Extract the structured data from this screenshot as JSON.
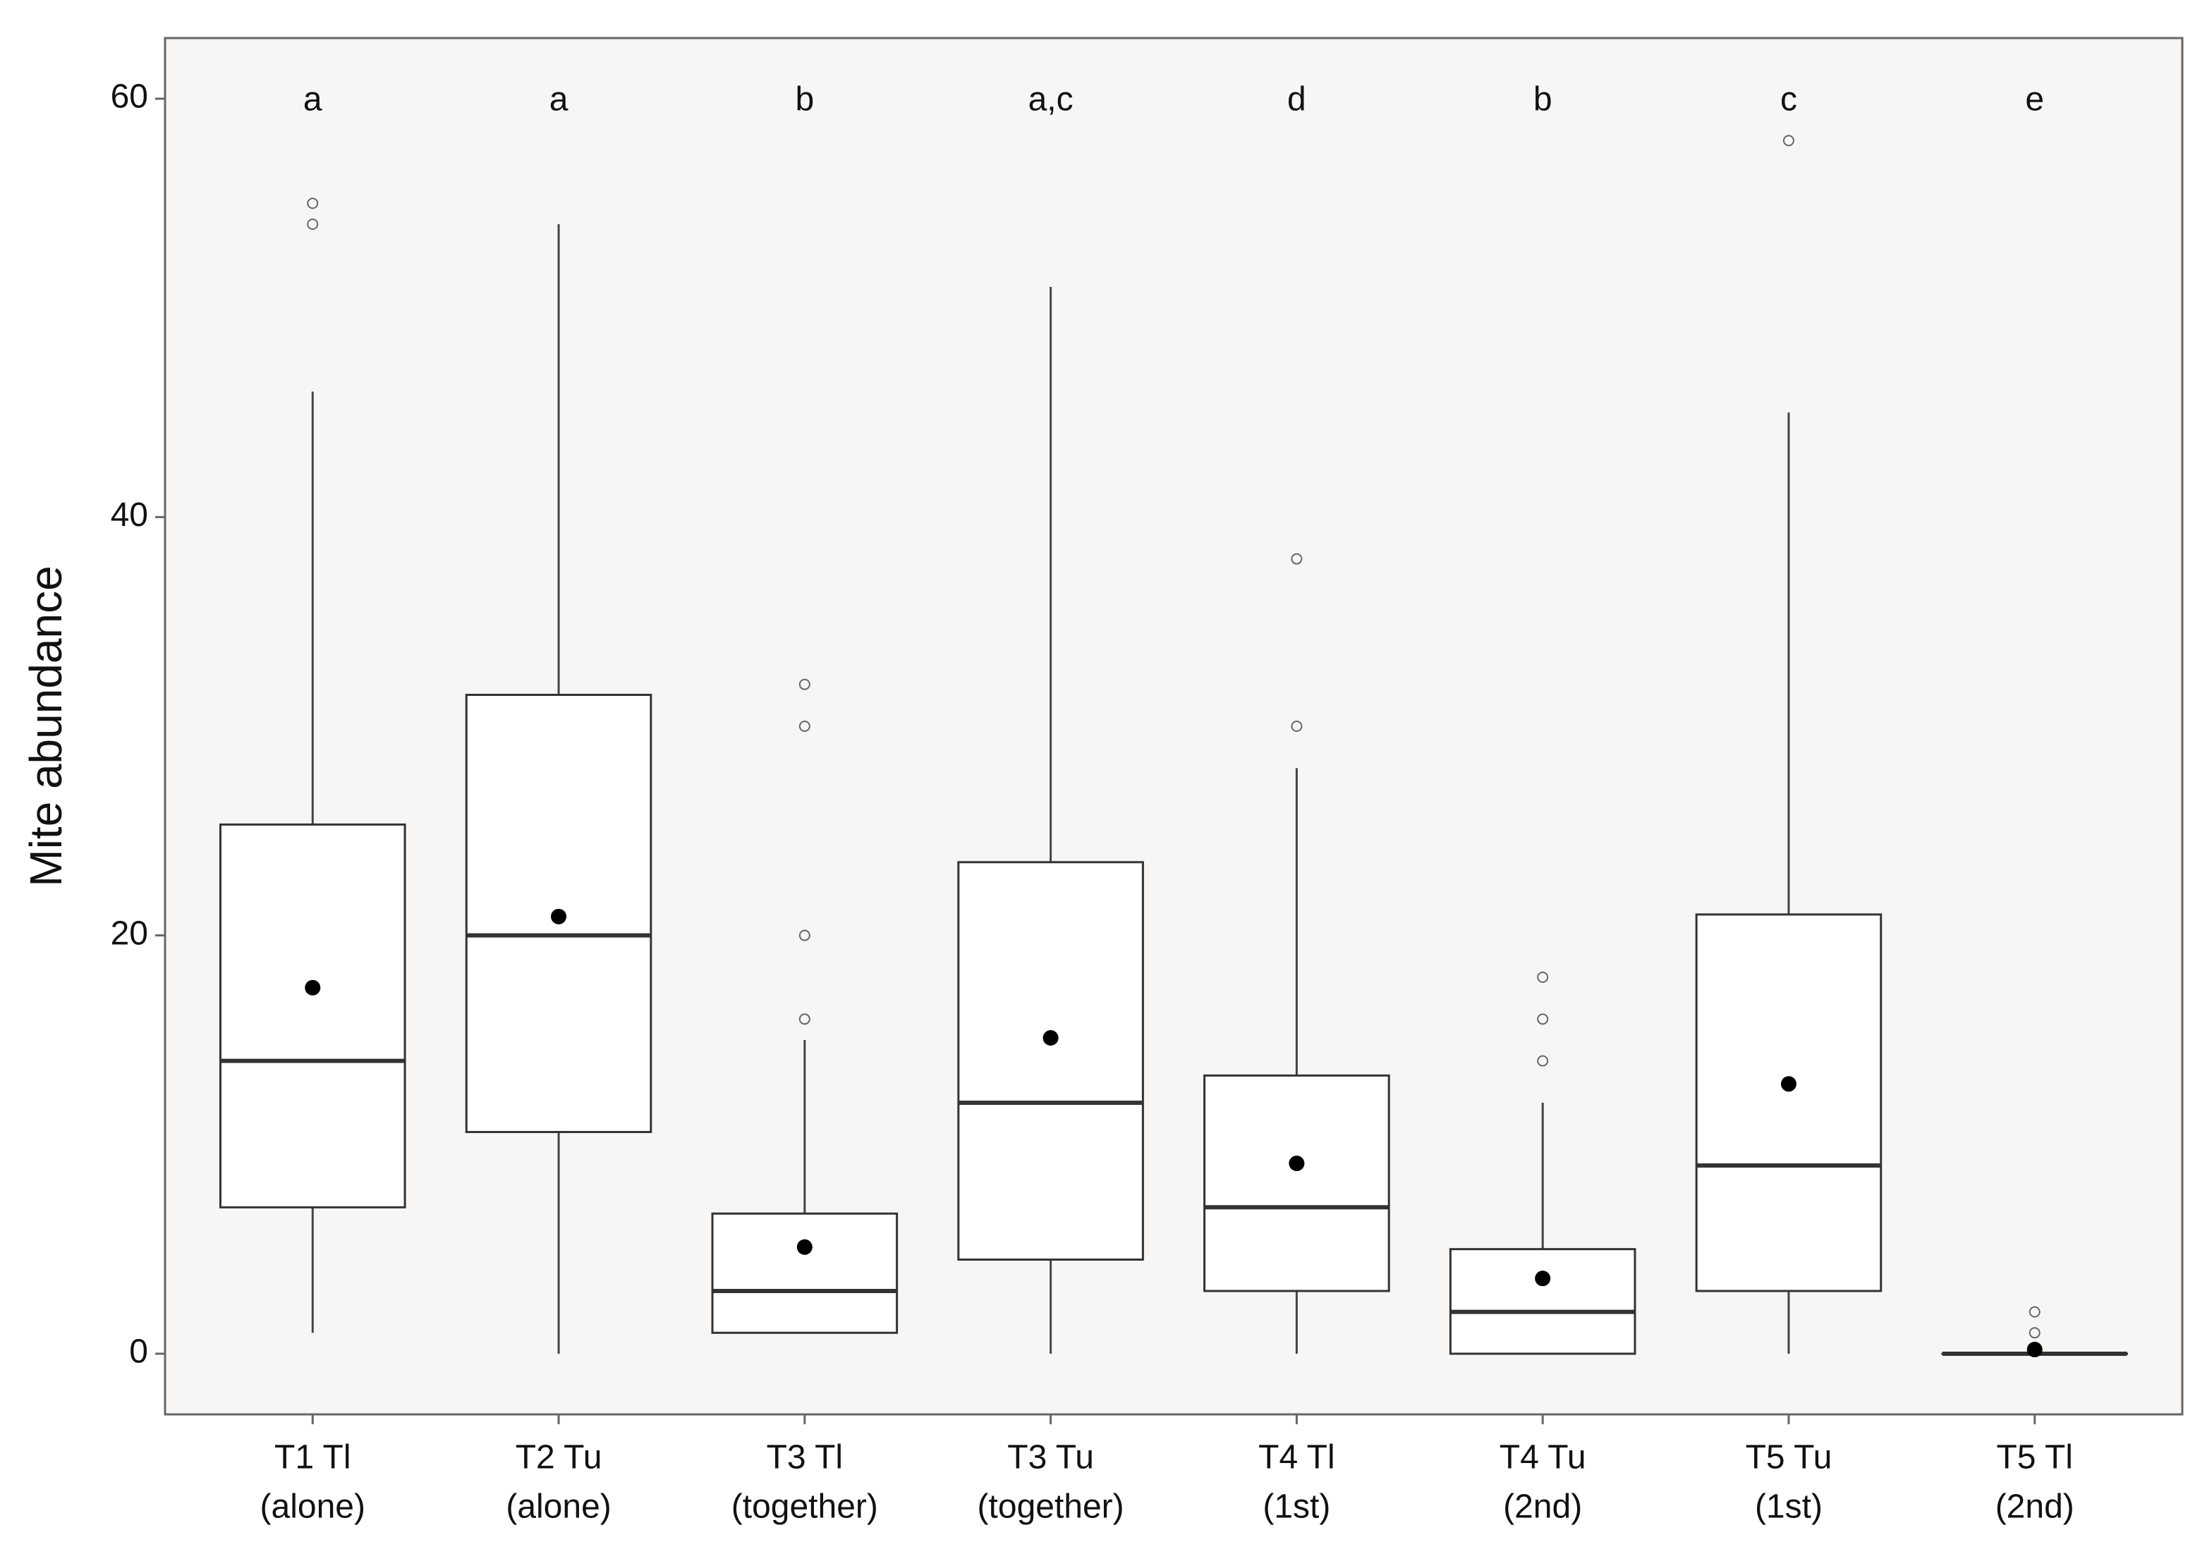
{
  "chart_data": {
    "type": "box",
    "y_label": "Mite abundance",
    "categories": [
      [
        "T1 Tl",
        "(alone)"
      ],
      [
        "T2 Tu",
        "(alone)"
      ],
      [
        "T3 Tl",
        "(together)"
      ],
      [
        "T3 Tu",
        "(together)"
      ],
      [
        "T4 Tl",
        "(1st)"
      ],
      [
        "T4 Tu",
        "(2nd)"
      ],
      [
        "T5 Tu",
        "(1st)"
      ],
      [
        "T5 Tl",
        "(2nd)"
      ]
    ],
    "letters": [
      "a",
      "a",
      "b",
      "a,c",
      "d",
      "b",
      "c",
      "e"
    ],
    "boxes": [
      {
        "whislo": 1,
        "q1": 7,
        "med": 14,
        "q3": 25.3,
        "whishi": 46,
        "mean": 17.5,
        "outliers": [
          54,
          55
        ]
      },
      {
        "whislo": 0,
        "q1": 10.6,
        "med": 20,
        "q3": 31.5,
        "whishi": 54,
        "mean": 20.9,
        "outliers": []
      },
      {
        "whislo": 1,
        "q1": 1,
        "med": 3,
        "q3": 6.7,
        "whishi": 15,
        "mean": 5.1,
        "outliers": [
          16,
          20,
          30,
          32
        ]
      },
      {
        "whislo": 0,
        "q1": 4.5,
        "med": 12,
        "q3": 23.5,
        "whishi": 51,
        "mean": 15.1,
        "outliers": []
      },
      {
        "whislo": 0,
        "q1": 3,
        "med": 7,
        "q3": 13.3,
        "whishi": 28,
        "mean": 9.1,
        "outliers": [
          30,
          38
        ]
      },
      {
        "whislo": 0,
        "q1": 0,
        "med": 2,
        "q3": 5,
        "whishi": 12,
        "mean": 3.6,
        "outliers": [
          14,
          16,
          18
        ]
      },
      {
        "whislo": 0,
        "q1": 3,
        "med": 9,
        "q3": 21,
        "whishi": 45,
        "mean": 12.9,
        "outliers": [
          58
        ]
      },
      {
        "whislo": 0,
        "q1": 0,
        "med": 0,
        "q3": 0,
        "whishi": 0,
        "mean": 0.2,
        "outliers": [
          1,
          2
        ]
      }
    ],
    "box_fill": "#ffffff",
    "box_stroke": "#333333",
    "mean_color": "#000000",
    "outlier_color": "#666666",
    "panel_color": "#f7f6f5",
    "ylim": [
      -2.9,
      62.9
    ],
    "yticks": [
      0,
      20,
      40,
      60
    ]
  }
}
